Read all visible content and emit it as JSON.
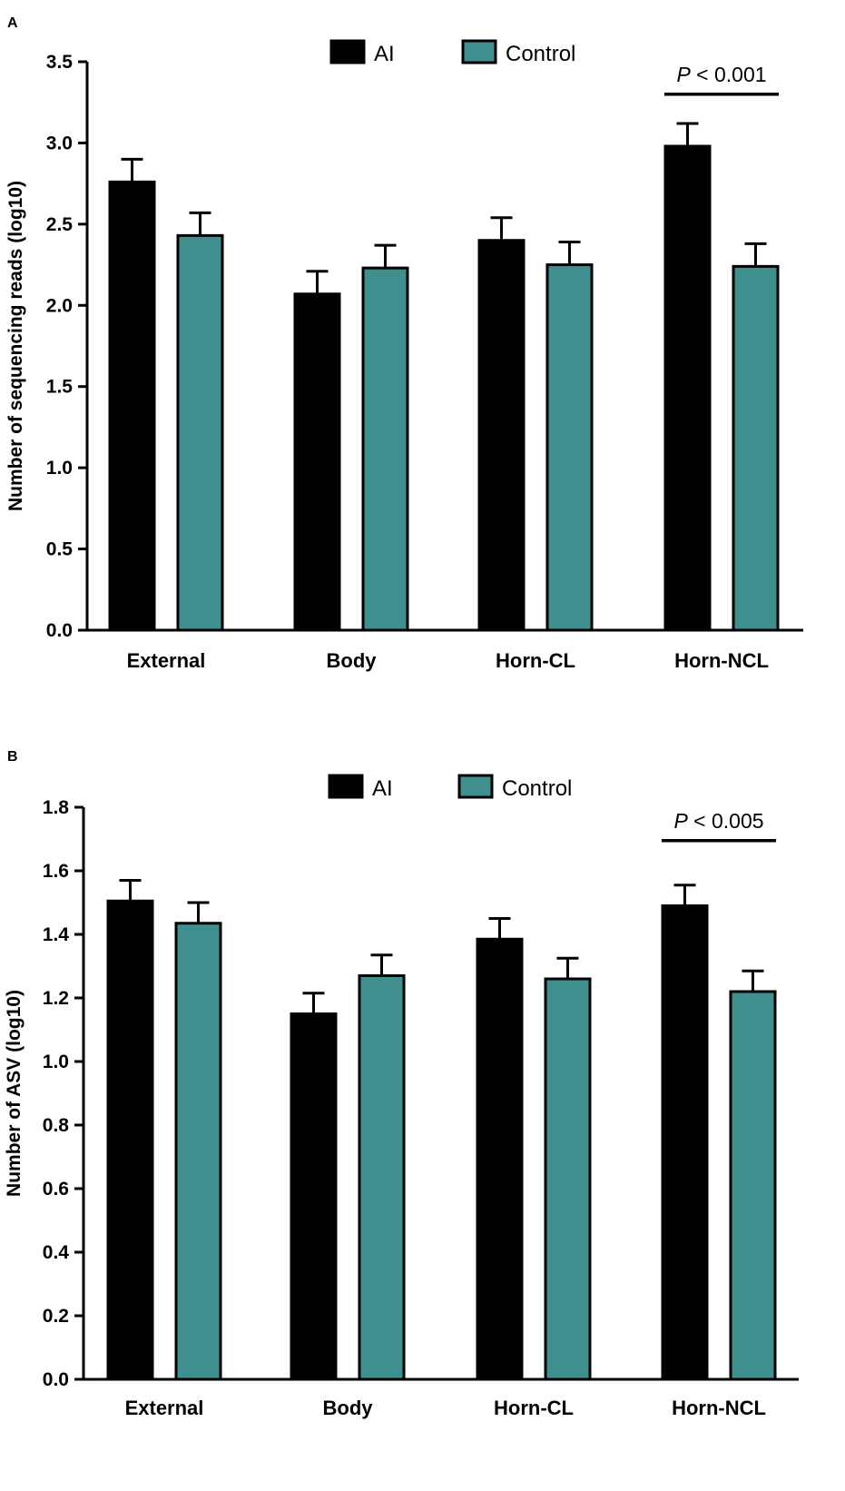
{
  "colors": {
    "ai": "#000000",
    "control": "#3f8f8f",
    "axis": "#000000",
    "background": "#ffffff"
  },
  "chart_data": [
    {
      "panel": "A",
      "type": "bar",
      "title": "",
      "xlabel": "",
      "ylabel": "Number of sequencing reads (log10)",
      "ylim": [
        0,
        3.5
      ],
      "yticks": [
        "0.0",
        "0.5",
        "1.0",
        "1.5",
        "2.0",
        "2.5",
        "3.0",
        "3.5"
      ],
      "legend_position": "top-center",
      "grid": false,
      "categories": [
        "External",
        "Body",
        "Horn-CL",
        "Horn-NCL"
      ],
      "series": [
        {
          "name": "AI",
          "color_key": "ai",
          "values": [
            2.76,
            2.07,
            2.4,
            2.98
          ],
          "errors": [
            0.14,
            0.14,
            0.14,
            0.14
          ]
        },
        {
          "name": "Control",
          "color_key": "control",
          "values": [
            2.43,
            2.23,
            2.25,
            2.24
          ],
          "errors": [
            0.14,
            0.14,
            0.14,
            0.14
          ]
        }
      ],
      "annotation": {
        "category_index": 3,
        "italic": "P",
        "rest": " < 0.001",
        "level": 3.3
      }
    },
    {
      "panel": "B",
      "type": "bar",
      "title": "",
      "xlabel": "",
      "ylabel": "Number of ASV (log10)",
      "ylim": [
        0,
        1.8
      ],
      "yticks": [
        "0.0",
        "0.2",
        "0.4",
        "0.6",
        "0.8",
        "1.0",
        "1.2",
        "1.4",
        "1.6",
        "1.8"
      ],
      "legend_position": "top-center",
      "grid": false,
      "categories": [
        "External",
        "Body",
        "Horn-CL",
        "Horn-NCL"
      ],
      "series": [
        {
          "name": "AI",
          "color_key": "ai",
          "values": [
            1.505,
            1.15,
            1.385,
            1.49
          ],
          "errors": [
            0.065,
            0.065,
            0.065,
            0.065
          ]
        },
        {
          "name": "Control",
          "color_key": "control",
          "values": [
            1.435,
            1.27,
            1.26,
            1.22
          ],
          "errors": [
            0.065,
            0.065,
            0.065,
            0.065
          ]
        }
      ],
      "annotation": {
        "category_index": 3,
        "italic": "P",
        "rest": " < 0.005",
        "level": 1.695
      }
    }
  ]
}
